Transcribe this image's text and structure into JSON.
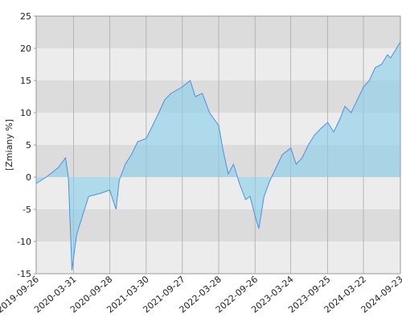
{
  "chart_data": {
    "type": "area",
    "y_label": "[Zmiany %]",
    "x": [
      "2019-09-26",
      "2019-11-15",
      "2020-01-15",
      "2020-02-20",
      "2020-03-05",
      "2020-03-23",
      "2020-04-15",
      "2020-05-15",
      "2020-06-15",
      "2020-08-15",
      "2020-09-28",
      "2020-10-30",
      "2020-11-15",
      "2020-12-15",
      "2021-01-15",
      "2021-02-15",
      "2021-03-30",
      "2021-05-01",
      "2021-06-01",
      "2021-07-01",
      "2021-08-01",
      "2021-09-27",
      "2021-11-05",
      "2021-12-01",
      "2022-01-05",
      "2022-02-10",
      "2022-03-28",
      "2022-04-20",
      "2022-05-15",
      "2022-06-10",
      "2022-07-10",
      "2022-08-10",
      "2022-09-01",
      "2022-09-26",
      "2022-10-15",
      "2022-11-10",
      "2022-12-10",
      "2023-01-10",
      "2023-02-10",
      "2023-03-24",
      "2023-04-20",
      "2023-05-20",
      "2023-06-20",
      "2023-07-20",
      "2023-08-20",
      "2023-09-25",
      "2023-10-25",
      "2023-11-25",
      "2023-12-20",
      "2024-01-20",
      "2024-02-20",
      "2024-03-22",
      "2024-04-20",
      "2024-05-20",
      "2024-06-20",
      "2024-07-20",
      "2024-08-05",
      "2024-09-23"
    ],
    "values": [
      -1,
      0,
      1.5,
      3,
      0,
      -14.5,
      -9,
      -6,
      -3,
      -2.5,
      -2,
      -5,
      -0.5,
      2,
      3.5,
      5.5,
      6,
      8,
      10,
      12,
      13,
      14,
      15,
      12.5,
      13,
      10,
      8,
      4,
      0.5,
      2,
      -1,
      -3.5,
      -3,
      -6,
      -8,
      -3,
      -0.5,
      1.5,
      3.5,
      4.5,
      2,
      3,
      5,
      6.5,
      7.5,
      8.5,
      7,
      9,
      11,
      10,
      12,
      14,
      15,
      17,
      17.5,
      19,
      18.5,
      21
    ],
    "color": "#4a90e2",
    "fill": "#87ceeb",
    "xlim": [
      "2019-09-26",
      "2024-09-23"
    ],
    "xticks": [
      "2019-09-26",
      "2020-03-31",
      "2020-09-28",
      "2021-03-30",
      "2021-09-27",
      "2022-03-28",
      "2022-09-26",
      "2023-03-24",
      "2023-09-25",
      "2024-03-22",
      "2024-09-23"
    ],
    "ylim": [
      -15,
      25
    ],
    "yticks": [
      -15,
      -10,
      -5,
      0,
      5,
      10,
      15,
      20,
      25
    ],
    "grid": true
  }
}
